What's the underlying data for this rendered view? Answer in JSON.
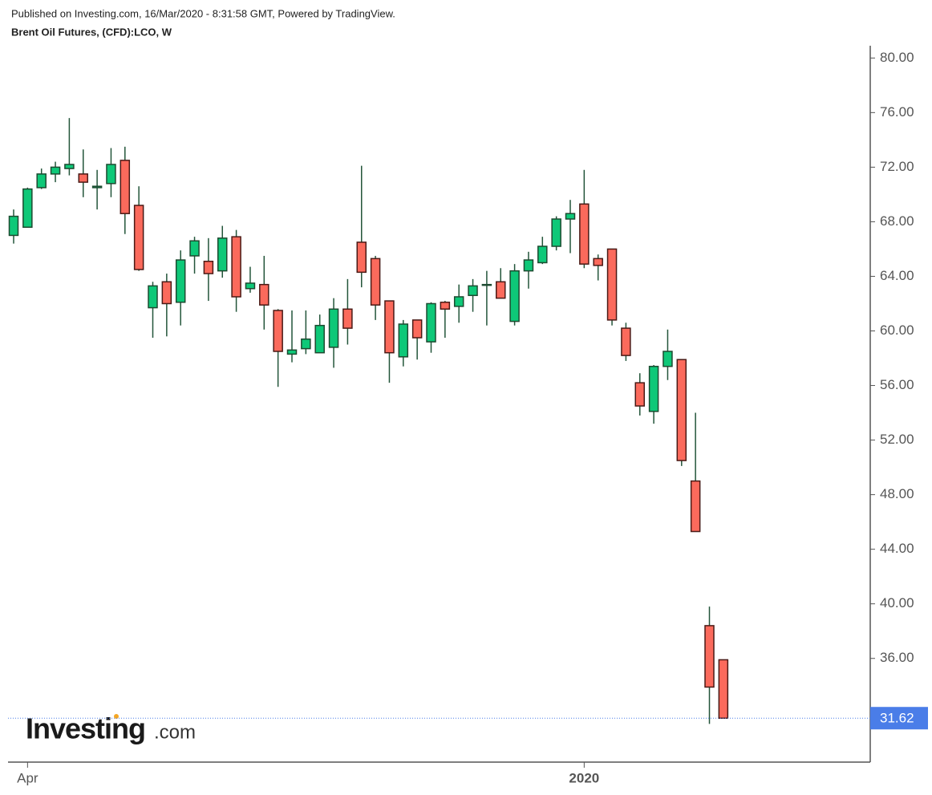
{
  "header": {
    "published": "Published on Investing.com, 16/Mar/2020 - 8:31:58 GMT, Powered by TradingView."
  },
  "watermark": {
    "brand": "Investing",
    "suffix": ".com"
  },
  "chart_data": {
    "type": "candlestick",
    "title": "Brent Oil Futures, (CFD):LCO, W",
    "categories": [
      null,
      "Apr",
      null,
      null,
      null,
      null,
      null,
      null,
      null,
      null,
      null,
      null,
      null,
      null,
      null,
      null,
      null,
      null,
      null,
      null,
      null,
      null,
      null,
      null,
      null,
      null,
      null,
      null,
      null,
      null,
      null,
      null,
      null,
      null,
      null,
      null,
      null,
      null,
      null,
      null,
      null,
      "2020",
      null,
      null,
      null,
      null,
      null,
      null,
      null,
      null,
      null,
      null
    ],
    "open": [
      67.0,
      67.6,
      70.5,
      71.5,
      71.9,
      71.5,
      70.5,
      70.8,
      72.5,
      69.2,
      61.7,
      63.6,
      62.1,
      65.5,
      65.1,
      64.4,
      66.9,
      63.1,
      63.4,
      61.5,
      58.3,
      58.7,
      58.4,
      58.8,
      61.6,
      66.5,
      65.3,
      62.2,
      58.1,
      60.8,
      59.2,
      62.1,
      61.8,
      62.6,
      63.35,
      63.6,
      60.7,
      64.4,
      65.0,
      66.2,
      68.2,
      69.3,
      65.3,
      66.0,
      60.2,
      56.2,
      54.1,
      57.4,
      57.9,
      49.0,
      38.4,
      35.9
    ],
    "high": [
      68.9,
      70.5,
      71.9,
      72.4,
      75.6,
      73.3,
      71.8,
      73.4,
      73.5,
      70.6,
      63.6,
      64.2,
      65.9,
      66.9,
      66.8,
      67.7,
      67.4,
      64.7,
      65.5,
      61.6,
      61.5,
      61.5,
      61.2,
      62.4,
      63.8,
      72.1,
      65.5,
      62.2,
      60.8,
      60.8,
      62.1,
      62.2,
      63.4,
      63.8,
      64.4,
      64.6,
      64.9,
      65.8,
      66.9,
      68.4,
      69.6,
      71.8,
      65.6,
      66.0,
      60.6,
      56.9,
      57.5,
      60.1,
      57.9,
      54.0,
      39.8,
      35.9
    ],
    "low": [
      66.4,
      67.6,
      70.4,
      70.9,
      71.4,
      69.8,
      68.9,
      69.8,
      67.1,
      64.4,
      59.5,
      59.6,
      60.4,
      64.2,
      62.2,
      63.9,
      61.4,
      62.8,
      60.1,
      55.9,
      57.7,
      58.3,
      58.4,
      57.3,
      59.0,
      63.2,
      60.8,
      56.2,
      57.4,
      57.9,
      58.4,
      59.5,
      60.6,
      61.4,
      60.4,
      62.4,
      60.4,
      63.1,
      64.9,
      65.9,
      65.7,
      64.6,
      63.7,
      60.4,
      57.8,
      53.8,
      53.2,
      56.4,
      50.1,
      45.3,
      31.2,
      31.62
    ],
    "close": [
      68.4,
      70.4,
      71.5,
      72.0,
      72.2,
      70.9,
      70.6,
      72.2,
      68.6,
      64.5,
      63.3,
      62.0,
      65.2,
      66.6,
      64.2,
      66.8,
      62.5,
      63.5,
      61.9,
      58.5,
      58.6,
      59.4,
      60.4,
      61.6,
      60.2,
      64.3,
      61.9,
      58.4,
      60.5,
      59.5,
      62.0,
      61.6,
      62.5,
      63.3,
      63.4,
      62.4,
      64.4,
      65.2,
      66.2,
      68.2,
      68.6,
      64.9,
      64.8,
      60.8,
      58.2,
      54.5,
      57.4,
      58.5,
      50.5,
      45.3,
      33.9,
      31.62
    ],
    "up_color": "#0ec878",
    "down_color": "#fb6a5c",
    "wick_color": "#23553a",
    "ylim": [
      28.4,
      80.9
    ],
    "yticks": [
      {
        "value": 36,
        "label": "36.00"
      },
      {
        "value": 40,
        "label": "40.00"
      },
      {
        "value": 44,
        "label": "44.00"
      },
      {
        "value": 48,
        "label": "48.00"
      },
      {
        "value": 52,
        "label": "52.00"
      },
      {
        "value": 56,
        "label": "56.00"
      },
      {
        "value": 60,
        "label": "60.00"
      },
      {
        "value": 64,
        "label": "64.00"
      },
      {
        "value": 68,
        "label": "68.00"
      },
      {
        "value": 72,
        "label": "72.00"
      },
      {
        "value": 76,
        "label": "76.00"
      },
      {
        "value": 80,
        "label": "80.00"
      }
    ],
    "last_price": {
      "value": 31.62,
      "label": "31.62"
    },
    "last_price_color": "#4a7de8"
  }
}
